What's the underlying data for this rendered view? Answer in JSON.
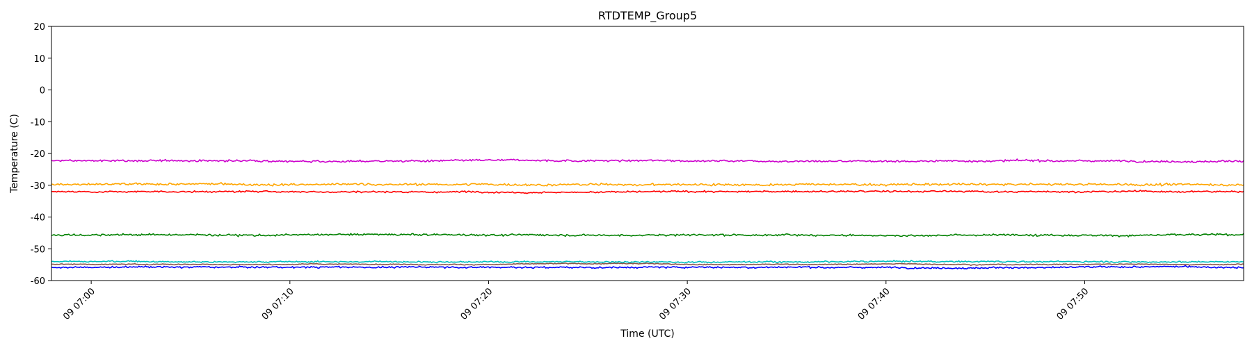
{
  "chart_data": {
    "type": "line",
    "title": "RTDTEMP_Group5",
    "xlabel": "Time (UTC)",
    "ylabel": "Temperature (C)",
    "x_start": "2024-01-09T06:58:00Z",
    "x_end": "2024-01-09T07:58:00Z",
    "ylim": [
      -60,
      20
    ],
    "y_ticks": [
      20,
      10,
      0,
      -10,
      -20,
      -30,
      -40,
      -50,
      -60
    ],
    "x_ticks": [
      {
        "time": "2024-01-09T07:00:00Z",
        "label": "09 07:00"
      },
      {
        "time": "2024-01-09T07:10:00Z",
        "label": "09 07:10"
      },
      {
        "time": "2024-01-09T07:20:00Z",
        "label": "09 07:20"
      },
      {
        "time": "2024-01-09T07:30:00Z",
        "label": "09 07:30"
      },
      {
        "time": "2024-01-09T07:40:00Z",
        "label": "09 07:40"
      },
      {
        "time": "2024-01-09T07:50:00Z",
        "label": "09 07:50"
      }
    ],
    "grid": false,
    "legend": "none",
    "series": [
      {
        "color": "#cc00cc",
        "mean": -22.3,
        "noise": 0.35
      },
      {
        "color": "#ffa500",
        "mean": -29.8,
        "noise": 0.4
      },
      {
        "color": "#ff0000",
        "mean": -32.0,
        "noise": 0.3
      },
      {
        "color": "#008000",
        "mean": -45.6,
        "noise": 0.35
      },
      {
        "color": "#00bfbf",
        "mean": -54.0,
        "noise": 0.25
      },
      {
        "color": "#8c564b",
        "mean": -54.8,
        "noise": 0.15
      },
      {
        "color": "#0000ff",
        "mean": -55.8,
        "noise": 0.3
      }
    ]
  }
}
